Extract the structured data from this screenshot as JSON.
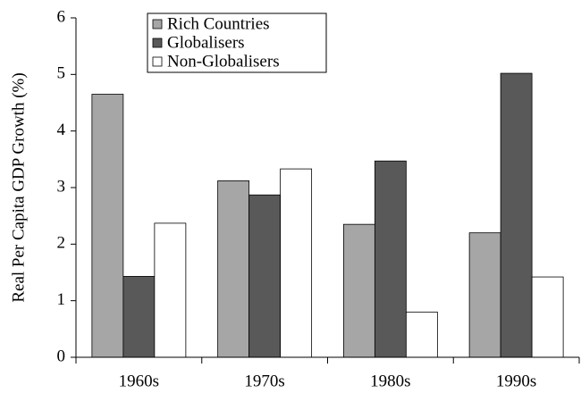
{
  "chart_data": {
    "type": "bar",
    "ylabel": "Real Per Capita GDP Growth (%)",
    "categories": [
      "1960s",
      "1970s",
      "1980s",
      "1990s"
    ],
    "series": [
      {
        "name": "Rich Countries",
        "color": "#a6a6a6",
        "values": [
          4.65,
          3.12,
          2.35,
          2.2
        ]
      },
      {
        "name": "Globalisers",
        "color": "#595959",
        "values": [
          1.43,
          2.87,
          3.47,
          5.02
        ]
      },
      {
        "name": "Non-Globalisers",
        "color": "#ffffff",
        "values": [
          2.37,
          3.33,
          0.8,
          1.42
        ]
      }
    ],
    "ylim": [
      0,
      6
    ],
    "yticks": [
      0,
      1,
      2,
      3,
      4,
      5,
      6
    ]
  }
}
